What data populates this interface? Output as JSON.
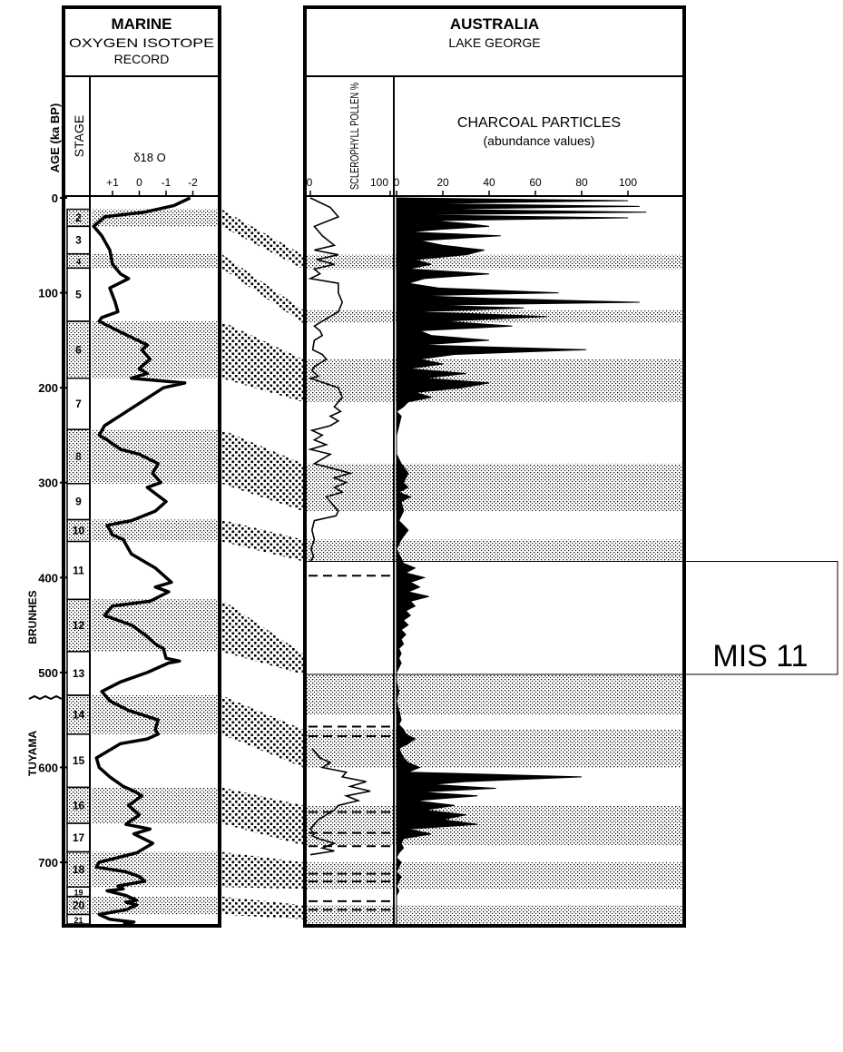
{
  "chart_data": [
    {
      "type": "line",
      "panel": "marine",
      "title": "MARINE",
      "subtitle_line1": "OXYGEN ISOTOPE",
      "subtitle_line2": "RECORD",
      "y_axis_label": "AGE (ka BP)",
      "stage_column_label": "STAGE",
      "x_axis_label": "δ18 O",
      "x_ticks": [
        "+1",
        "0",
        "-1",
        "-2"
      ],
      "x_tick_values": [
        1,
        0,
        -1,
        -2
      ],
      "xlim": [
        2,
        -2
      ],
      "ylim": [
        0,
        765
      ],
      "y_ticks": [
        "0",
        "100",
        "200",
        "300",
        "400",
        "500",
        "600",
        "700"
      ],
      "y_tick_values": [
        0,
        100,
        200,
        300,
        400,
        500,
        600,
        700
      ],
      "stages": [
        {
          "label": "2",
          "top": 12,
          "bottom": 30,
          "glacial": true
        },
        {
          "label": "3",
          "top": 30,
          "bottom": 59,
          "glacial": false
        },
        {
          "label": "4",
          "top": 59,
          "bottom": 74,
          "glacial": true
        },
        {
          "label": "5",
          "top": 74,
          "bottom": 130,
          "glacial": false
        },
        {
          "label": "6",
          "top": 130,
          "bottom": 190,
          "glacial": true
        },
        {
          "label": "7",
          "top": 190,
          "bottom": 244,
          "glacial": false
        },
        {
          "label": "8",
          "top": 244,
          "bottom": 301,
          "glacial": true
        },
        {
          "label": "9",
          "top": 301,
          "bottom": 339,
          "glacial": false
        },
        {
          "label": "10",
          "top": 339,
          "bottom": 362,
          "glacial": true
        },
        {
          "label": "11",
          "top": 362,
          "bottom": 423,
          "glacial": false
        },
        {
          "label": "12",
          "top": 423,
          "bottom": 478,
          "glacial": true
        },
        {
          "label": "13",
          "top": 478,
          "bottom": 524,
          "glacial": false
        },
        {
          "label": "14",
          "top": 524,
          "bottom": 565,
          "glacial": true
        },
        {
          "label": "15",
          "top": 565,
          "bottom": 621,
          "glacial": false
        },
        {
          "label": "16",
          "top": 621,
          "bottom": 659,
          "glacial": true
        },
        {
          "label": "17",
          "top": 659,
          "bottom": 689,
          "glacial": false
        },
        {
          "label": "18",
          "top": 689,
          "bottom": 726,
          "glacial": true
        },
        {
          "label": "19",
          "top": 726,
          "bottom": 736,
          "glacial": false
        },
        {
          "label": "20",
          "top": 736,
          "bottom": 755,
          "glacial": true
        },
        {
          "label": "21",
          "top": 755,
          "bottom": 765,
          "glacial": false
        }
      ],
      "series": [
        {
          "x": [
            -1.9,
            -1.3,
            -0.2,
            1.3,
            1.7,
            1.4,
            1.1,
            1.0,
            0.7,
            0.4,
            1.1,
            0.9,
            0.8,
            1.4,
            1.5,
            0.8,
            -0.3,
            -0.1,
            -0.4,
            0.0,
            -0.3,
            0.3,
            -1.7,
            -0.9,
            1.3,
            1.5,
            1.2,
            0.7,
            0.0,
            -0.7,
            -0.5,
            -0.8,
            -0.3,
            -1.0,
            -0.6,
            0.3,
            1.2,
            1.0,
            0.6,
            0.3,
            -0.3,
            -0.6,
            -1.2,
            -0.6,
            -1.1,
            -0.4,
            1.0,
            1.3,
            0.3,
            -0.2,
            -0.6,
            -0.9,
            -1.0,
            -1.5,
            -1.1,
            -0.3,
            0.7,
            1.4,
            1.1,
            0.4,
            -0.7,
            -0.6,
            -0.7,
            -0.3,
            0.7,
            1.6,
            1.5,
            1.1,
            0.6,
            0.2,
            -0.1,
            0.4,
            0.0,
            0.5,
            -0.4,
            0.2,
            -0.5,
            0.1,
            1.5,
            1.6,
            0.5,
            0.0,
            -0.2,
            0.8,
            0.6,
            1.2,
            0.5,
            0.1,
            0.5,
            0.1,
            0.5,
            1.5,
            1.1,
            0.2,
            0.6
          ],
          "y": [
            0,
            8,
            15,
            20,
            30,
            40,
            55,
            70,
            80,
            85,
            95,
            110,
            120,
            126,
            130,
            140,
            155,
            160,
            170,
            180,
            185,
            190,
            195,
            200,
            240,
            250,
            255,
            265,
            270,
            280,
            290,
            300,
            305,
            320,
            330,
            340,
            345,
            355,
            360,
            375,
            385,
            390,
            405,
            410,
            415,
            425,
            430,
            440,
            450,
            460,
            470,
            475,
            485,
            488,
            490,
            500,
            510,
            520,
            530,
            540,
            550,
            560,
            565,
            570,
            575,
            590,
            600,
            610,
            620,
            625,
            630,
            640,
            650,
            660,
            665,
            670,
            680,
            690,
            700,
            705,
            710,
            715,
            720,
            725,
            728,
            730,
            735,
            740,
            742,
            745,
            750,
            755,
            760,
            763,
            765
          ]
        }
      ]
    },
    {
      "type": "line",
      "panel": "sclerophyll",
      "xlabel": "SCLEROPHYLL POLLEN %",
      "x_ticks": [
        "0",
        "100"
      ],
      "xlim": [
        0,
        100
      ],
      "ylim": [
        0,
        765
      ],
      "series": [
        {
          "x": [
            0,
            25,
            35,
            5,
            15,
            30,
            5,
            35,
            8,
            30,
            5,
            12,
            0,
            35,
            35,
            40,
            35,
            15,
            5,
            12,
            15,
            5,
            3,
            15,
            20,
            5,
            2,
            10,
            0,
            35,
            40,
            30,
            38,
            25,
            35,
            25,
            2,
            15,
            5,
            20,
            0,
            25,
            5,
            50,
            30,
            45,
            30,
            40,
            20,
            25,
            30,
            35,
            32,
            5,
            2,
            5,
            1,
            4,
            0
          ],
          "y": [
            0,
            10,
            20,
            30,
            40,
            50,
            55,
            60,
            65,
            70,
            75,
            80,
            85,
            90,
            100,
            110,
            120,
            130,
            135,
            140,
            145,
            150,
            160,
            165,
            170,
            178,
            182,
            188,
            190,
            200,
            210,
            220,
            225,
            230,
            235,
            240,
            245,
            250,
            255,
            260,
            265,
            270,
            280,
            290,
            295,
            300,
            305,
            310,
            315,
            320,
            325,
            330,
            335,
            340,
            350,
            360,
            370,
            378,
            383
          ]
        },
        {
          "x": [
            2,
            12,
            25,
            15,
            45,
            40,
            70,
            50,
            75,
            45,
            60,
            35,
            30,
            20,
            10,
            5,
            0,
            5,
            2,
            10,
            30,
            15,
            30,
            0
          ],
          "y": [
            580,
            590,
            595,
            600,
            605,
            610,
            615,
            620,
            625,
            630,
            635,
            640,
            645,
            650,
            655,
            660,
            665,
            670,
            672,
            675,
            680,
            685,
            688,
            692
          ]
        }
      ],
      "gap_from_to": [
        [
          383,
          580
        ],
        [
          692,
          765
        ]
      ]
    },
    {
      "type": "area",
      "panel": "charcoal",
      "xlabel": "CHARCOAL PARTICLES",
      "xlabel_sub": "(abundance values)",
      "x_ticks": [
        "0",
        "20",
        "40",
        "60",
        "80",
        "100"
      ],
      "x_tick_values": [
        0,
        20,
        40,
        60,
        80,
        100
      ],
      "xlim": [
        0,
        122
      ],
      "ylim": [
        0,
        765
      ],
      "series": [
        {
          "name": "",
          "y": [
            0,
            3,
            6,
            9,
            12,
            15,
            18,
            21,
            24,
            27,
            30,
            33,
            36,
            40,
            45,
            50,
            55,
            60,
            65,
            70,
            75,
            80,
            85,
            90,
            95,
            100,
            103,
            106,
            110,
            113,
            116,
            120,
            125,
            130,
            135,
            140,
            145,
            150,
            155,
            160,
            165,
            170,
            175,
            180,
            185,
            190,
            195,
            200,
            205,
            210,
            215,
            220,
            225,
            230,
            240,
            250,
            260,
            270,
            280,
            290,
            300,
            305,
            310,
            315,
            320,
            330,
            340,
            350,
            360,
            370,
            380,
            385,
            390,
            395,
            400,
            405,
            410,
            415,
            420,
            425,
            430,
            435,
            440,
            445,
            450,
            455,
            460,
            465,
            470,
            475,
            480,
            485,
            490,
            495,
            500,
            510,
            520,
            530,
            540,
            550,
            555,
            560,
            565,
            570,
            575,
            580,
            585,
            590,
            595,
            600,
            605,
            610,
            615,
            618,
            622,
            626,
            630,
            635,
            640,
            645,
            650,
            655,
            660,
            665,
            670,
            675,
            680,
            685,
            690,
            695,
            700,
            705,
            710,
            715,
            720,
            725,
            730,
            735,
            740,
            745,
            750,
            755,
            760,
            765
          ],
          "values": [
            0,
            100,
            10,
            105,
            12,
            108,
            8,
            100,
            15,
            30,
            40,
            20,
            5,
            45,
            10,
            20,
            38,
            30,
            8,
            15,
            5,
            40,
            12,
            5,
            18,
            70,
            10,
            40,
            105,
            15,
            55,
            10,
            65,
            20,
            50,
            10,
            15,
            40,
            10,
            82,
            25,
            10,
            20,
            5,
            30,
            12,
            40,
            28,
            8,
            15,
            5,
            3,
            0,
            2,
            1,
            0,
            0,
            0,
            2,
            5,
            3,
            5,
            1,
            6,
            2,
            3,
            1,
            5,
            2,
            0,
            2,
            3,
            8,
            4,
            12,
            6,
            10,
            5,
            14,
            6,
            8,
            4,
            6,
            3,
            5,
            2,
            4,
            2,
            3,
            1,
            2,
            1,
            2,
            1,
            0,
            0,
            1,
            0,
            1,
            2,
            1,
            3,
            4,
            8,
            5,
            1,
            2,
            3,
            5,
            10,
            5,
            80,
            30,
            15,
            43,
            10,
            35,
            8,
            25,
            12,
            30,
            20,
            35,
            5,
            15,
            3,
            2,
            3,
            1,
            0,
            2,
            1,
            0,
            2,
            1,
            0,
            1,
            0,
            0,
            0,
            0,
            0,
            0,
            0
          ]
        }
      ]
    }
  ],
  "australia": {
    "title": "AUSTRALIA",
    "subtitle": "LAKE GEORGE"
  },
  "side_labels": {
    "brunhes": "BRUNHES",
    "tuyama": "TUYAMA"
  },
  "annotation": {
    "label": "MIS 11",
    "age_top": 383,
    "age_bottom": 502
  },
  "dashed_markers": [
    398,
    557,
    567,
    647,
    669,
    683,
    712,
    720,
    741,
    750
  ],
  "correlations": [
    {
      "marine": [
        12,
        30
      ],
      "lake": [
        60,
        75
      ]
    },
    {
      "marine": [
        59,
        74
      ],
      "lake": [
        118,
        132
      ]
    },
    {
      "marine": [
        130,
        190
      ],
      "lake": [
        170,
        215
      ]
    },
    {
      "marine": [
        244,
        301
      ],
      "lake": [
        280,
        330
      ]
    },
    {
      "marine": [
        339,
        362
      ],
      "lake": [
        360,
        383
      ]
    },
    {
      "marine": [
        423,
        478
      ],
      "lake": [
        480,
        502
      ]
    },
    {
      "marine": [
        524,
        565
      ],
      "lake": [
        560,
        600
      ]
    },
    {
      "marine": [
        621,
        659
      ],
      "lake": [
        640,
        682
      ]
    },
    {
      "marine": [
        689,
        726
      ],
      "lake": [
        700,
        728
      ]
    },
    {
      "marine": [
        736,
        755
      ],
      "lake": [
        745,
        760
      ]
    }
  ]
}
